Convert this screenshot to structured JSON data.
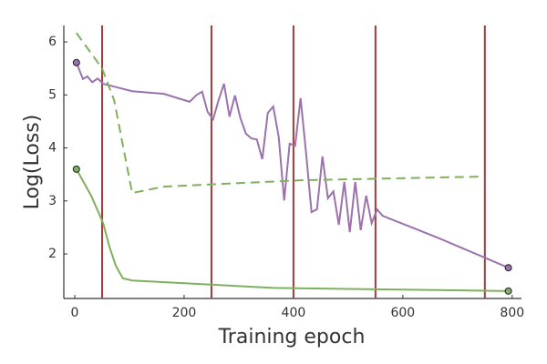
{
  "chart_data": {
    "type": "line",
    "x_label": "Training epoch",
    "y_label": "Log(Loss)",
    "xlim": [
      -20,
      817
    ],
    "ylim": [
      1.16,
      6.31
    ],
    "xticks": [
      0,
      200,
      400,
      600,
      800
    ],
    "yticks": [
      2,
      3,
      4,
      5,
      6
    ],
    "grid": false,
    "vlines": {
      "x": [
        50,
        250,
        400,
        550,
        750
      ],
      "color": "#a33a3a"
    },
    "series": [
      {
        "color": "#9b72ab",
        "style": "solid",
        "end_markers": true,
        "x": [
          3,
          15,
          23,
          32,
          42,
          52,
          105,
          163,
          210,
          223,
          233,
          243,
          253,
          263,
          273,
          283,
          293,
          303,
          313,
          323,
          333,
          343,
          353,
          363,
          373,
          383,
          393,
          403,
          413,
          423,
          433,
          443,
          453,
          463,
          473,
          483,
          493,
          503,
          513,
          523,
          533,
          543,
          553,
          563,
          663,
          793
        ],
        "values": [
          5.61,
          5.3,
          5.35,
          5.24,
          5.31,
          5.21,
          5.07,
          5.02,
          4.87,
          5.0,
          5.06,
          4.68,
          4.54,
          4.9,
          5.21,
          4.59,
          4.99,
          4.56,
          4.27,
          4.18,
          4.16,
          3.79,
          4.66,
          4.78,
          4.21,
          3.01,
          4.08,
          4.04,
          4.94,
          3.91,
          2.79,
          2.84,
          3.84,
          3.05,
          3.18,
          2.55,
          3.36,
          2.41,
          3.36,
          2.45,
          3.1,
          2.58,
          2.84,
          2.72,
          2.31,
          1.74
        ]
      },
      {
        "color": "#7fb05e",
        "style": "solid",
        "end_markers": true,
        "x": [
          3,
          30,
          52,
          63,
          75,
          88,
          105,
          363,
          793
        ],
        "values": [
          3.6,
          3.1,
          2.58,
          2.15,
          1.78,
          1.54,
          1.5,
          1.36,
          1.3
        ]
      },
      {
        "color": "#7fb05e",
        "style": "dashed",
        "end_markers": false,
        "x": [
          3,
          50,
          72,
          105,
          163,
          413,
          747
        ],
        "values": [
          6.17,
          5.5,
          4.9,
          3.15,
          3.27,
          3.39,
          3.46
        ]
      }
    ]
  }
}
